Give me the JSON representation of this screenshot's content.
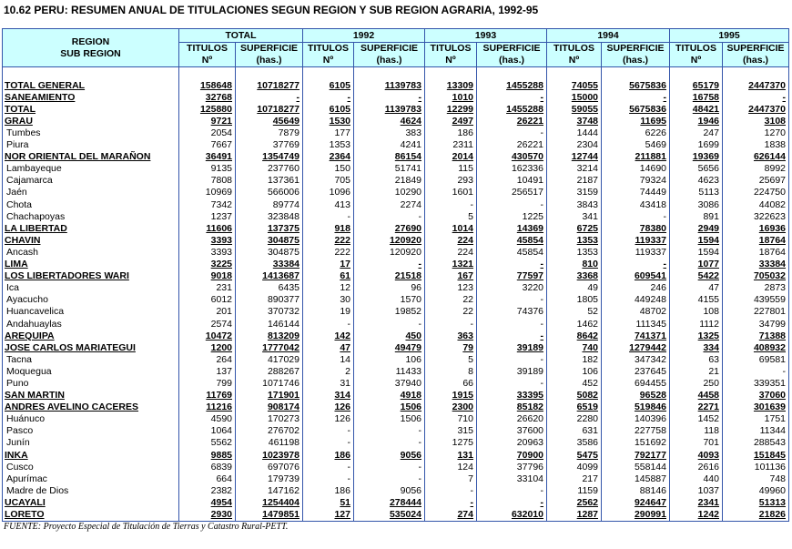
{
  "title": "10.62  PERU:  RESUMEN ANUAL DE TITULACIONES SEGUN REGION Y SUB REGION AGRARIA, 1992-95",
  "header": {
    "region": [
      "REGION",
      "SUB REGION"
    ],
    "years": [
      "TOTAL",
      "1992",
      "1993",
      "1994",
      "1995"
    ],
    "subcols": [
      [
        "TITULOS",
        "Nº"
      ],
      [
        "SUPERFICIE",
        "(has.)"
      ]
    ]
  },
  "summary": [
    [
      "TOTAL GENERAL",
      "158648",
      "10718277",
      "6105",
      "1139783",
      "13309",
      "1455288",
      "74055",
      "5675836",
      "65179",
      "2447370"
    ],
    [
      "SANEAMIENTO",
      "32768",
      "-",
      "-",
      "-",
      "1010",
      "-",
      "15000",
      "-",
      "16758",
      "-"
    ],
    [
      "TOTAL",
      "125880",
      "10718277",
      "6105",
      "1139783",
      "12299",
      "1455288",
      "59055",
      "5675836",
      "48421",
      "2447370"
    ]
  ],
  "regions": [
    {
      "row": [
        "GRAU",
        "9721",
        "45649",
        "1530",
        "4624",
        "2497",
        "26221",
        "3748",
        "11695",
        "1946",
        "3108"
      ],
      "subregions": [
        [
          "Tumbes",
          "2054",
          "7879",
          "177",
          "383",
          "186",
          "-",
          "1444",
          "6226",
          "247",
          "1270"
        ],
        [
          "Piura",
          "7667",
          "37769",
          "1353",
          "4241",
          "2311",
          "26221",
          "2304",
          "5469",
          "1699",
          "1838"
        ]
      ]
    },
    {
      "row": [
        "NOR ORIENTAL DEL MARAÑON",
        "36491",
        "1354749",
        "2364",
        "86154",
        "2014",
        "430570",
        "12744",
        "211881",
        "19369",
        "626144"
      ],
      "subregions": [
        [
          "Lambayeque",
          "9135",
          "237760",
          "150",
          "51741",
          "115",
          "162336",
          "3214",
          "14690",
          "5656",
          "8992"
        ],
        [
          "Cajamarca",
          "7808",
          "137361",
          "705",
          "21849",
          "293",
          "10491",
          "2187",
          "79324",
          "4623",
          "25697"
        ],
        [
          "Jaén",
          "10969",
          "566006",
          "1096",
          "10290",
          "1601",
          "256517",
          "3159",
          "74449",
          "5113",
          "224750"
        ],
        [
          "Chota",
          "7342",
          "89774",
          "413",
          "2274",
          "-",
          "-",
          "3843",
          "43418",
          "3086",
          "44082"
        ],
        [
          "Chachapoyas",
          "1237",
          "323848",
          "-",
          "-",
          "5",
          "1225",
          "341",
          "-",
          "891",
          "322623"
        ]
      ]
    },
    {
      "row": [
        "LA LIBERTAD",
        "11606",
        "137375",
        "918",
        "27690",
        "1014",
        "14369",
        "6725",
        "78380",
        "2949",
        "16936"
      ],
      "subregions": []
    },
    {
      "row": [
        "CHAVIN",
        "3393",
        "304875",
        "222",
        "120920",
        "224",
        "45854",
        "1353",
        "119337",
        "1594",
        "18764"
      ],
      "subregions": [
        [
          "Ancash",
          "3393",
          "304875",
          "222",
          "120920",
          "224",
          "45854",
          "1353",
          "119337",
          "1594",
          "18764"
        ]
      ]
    },
    {
      "row": [
        "LIMA",
        "3225",
        "33384",
        "17",
        "-",
        "1321",
        "-",
        "810",
        "-",
        "1077",
        "33384"
      ],
      "subregions": []
    },
    {
      "row": [
        "LOS LIBERTADORES WARI",
        "9018",
        "1413687",
        "61",
        "21518",
        "167",
        "77597",
        "3368",
        "609541",
        "5422",
        "705032"
      ],
      "subregions": [
        [
          "Ica",
          "231",
          "6435",
          "12",
          "96",
          "123",
          "3220",
          "49",
          "246",
          "47",
          "2873"
        ],
        [
          "Ayacucho",
          "6012",
          "890377",
          "30",
          "1570",
          "22",
          "-",
          "1805",
          "449248",
          "4155",
          "439559"
        ],
        [
          "Huancavelica",
          "201",
          "370732",
          "19",
          "19852",
          "22",
          "74376",
          "52",
          "48702",
          "108",
          "227801"
        ],
        [
          "Andahuaylas",
          "2574",
          "146144",
          "-",
          "-",
          "-",
          "-",
          "1462",
          "111345",
          "1112",
          "34799"
        ]
      ]
    },
    {
      "row": [
        "AREQUIPA",
        "10472",
        "813209",
        "142",
        "450",
        "363",
        "-",
        "8642",
        "741371",
        "1325",
        "71388"
      ],
      "subregions": []
    },
    {
      "row": [
        "JOSE CARLOS MARIATEGUI",
        "1200",
        "1777042",
        "47",
        "49479",
        "79",
        "39189",
        "740",
        "1279442",
        "334",
        "408932"
      ],
      "subregions": [
        [
          "Tacna",
          "264",
          "417029",
          "14",
          "106",
          "5",
          "-",
          "182",
          "347342",
          "63",
          "69581"
        ],
        [
          "Moquegua",
          "137",
          "288267",
          "2",
          "11433",
          "8",
          "39189",
          "106",
          "237645",
          "21",
          "-"
        ],
        [
          "Puno",
          "799",
          "1071746",
          "31",
          "37940",
          "66",
          "-",
          "452",
          "694455",
          "250",
          "339351"
        ]
      ]
    },
    {
      "row": [
        "SAN MARTIN",
        "11769",
        "171901",
        "314",
        "4918",
        "1915",
        "33395",
        "5082",
        "96528",
        "4458",
        "37060"
      ],
      "subregions": []
    },
    {
      "row": [
        "ANDRES AVELINO CACERES",
        "11216",
        "908174",
        "126",
        "1506",
        "2300",
        "85182",
        "6519",
        "519846",
        "2271",
        "301639"
      ],
      "subregions": [
        [
          "Huánuco",
          "4590",
          "170273",
          "126",
          "1506",
          "710",
          "26620",
          "2280",
          "140396",
          "1452",
          "1751"
        ],
        [
          "Pasco",
          "1064",
          "276702",
          "-",
          "-",
          "315",
          "37600",
          "631",
          "227758",
          "118",
          "11344"
        ],
        [
          "Junín",
          "5562",
          "461198",
          "-",
          "-",
          "1275",
          "20963",
          "3586",
          "151692",
          "701",
          "288543"
        ]
      ]
    },
    {
      "row": [
        "INKA",
        "9885",
        "1023978",
        "186",
        "9056",
        "131",
        "70900",
        "5475",
        "792177",
        "4093",
        "151845"
      ],
      "subregions": [
        [
          "Cusco",
          "6839",
          "697076",
          "-",
          "-",
          "124",
          "37796",
          "4099",
          "558144",
          "2616",
          "101136"
        ],
        [
          "Apurímac",
          "664",
          "179739",
          "-",
          "-",
          "7",
          "33104",
          "217",
          "145887",
          "440",
          "748"
        ],
        [
          "Madre de Dios",
          "2382",
          "147162",
          "186",
          "9056",
          "-",
          "-",
          "1159",
          "88146",
          "1037",
          "49960"
        ]
      ]
    },
    {
      "row": [
        "UCAYALI",
        "4954",
        "1254404",
        "51",
        "278444",
        "-",
        "-",
        "2562",
        "924647",
        "2341",
        "51313"
      ],
      "subregions": []
    },
    {
      "row": [
        "LORETO",
        "2930",
        "1479851",
        "127",
        "535024",
        "274",
        "632010",
        "1287",
        "290991",
        "1242",
        "21826"
      ],
      "subregions": []
    }
  ],
  "footer": "FUENTE: Proyecto Especial de Titulación de Tierras y Catastro Rural-PETT."
}
